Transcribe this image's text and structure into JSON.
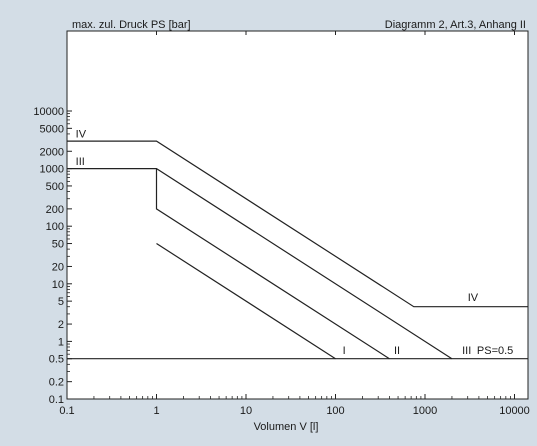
{
  "chart_data": {
    "type": "line",
    "title": "Diagramm 2, Art.3, Anhang II",
    "ylabel": "max. zul. Druck PS [bar]",
    "xlabel": "Volumen V [l]",
    "x_scale": "log",
    "y_scale": "log",
    "xlim": [
      0.1,
      20000
    ],
    "ylim": [
      0.1,
      20000
    ],
    "grid": false,
    "legend": "none",
    "x_ticks": [
      {
        "value": 0.1,
        "label": "0.1"
      },
      {
        "value": 1,
        "label": "1"
      },
      {
        "value": 10,
        "label": "10"
      },
      {
        "value": 100,
        "label": "100"
      },
      {
        "value": 1000,
        "label": "1000"
      },
      {
        "value": 10000,
        "label": "10000"
      }
    ],
    "y_ticks": [
      {
        "value": 0.1,
        "label": "0.1"
      },
      {
        "value": 0.2,
        "label": "0.2"
      },
      {
        "value": 0.5,
        "label": "0.5"
      },
      {
        "value": 1,
        "label": "1"
      },
      {
        "value": 2,
        "label": "2"
      },
      {
        "value": 5,
        "label": "5"
      },
      {
        "value": 10,
        "label": "10"
      },
      {
        "value": 20,
        "label": "20"
      },
      {
        "value": 50,
        "label": "50"
      },
      {
        "value": 100,
        "label": "100"
      },
      {
        "value": 200,
        "label": "200"
      },
      {
        "value": 500,
        "label": "500"
      },
      {
        "value": 1000,
        "label": "1000"
      },
      {
        "value": 2000,
        "label": "2000"
      },
      {
        "value": 5000,
        "label": "5000"
      },
      {
        "value": 10000,
        "label": "10000"
      }
    ],
    "series": [
      {
        "name": "IV",
        "points": [
          [
            0.1,
            3000
          ],
          [
            1,
            3000
          ],
          [
            750,
            4
          ],
          [
            14000,
            4
          ]
        ]
      },
      {
        "name": "III",
        "points": [
          [
            0.1,
            1000
          ],
          [
            1,
            1000
          ],
          [
            2000,
            0.5
          ]
        ]
      },
      {
        "name": "II",
        "points": [
          [
            1,
            1000
          ],
          [
            1,
            200
          ],
          [
            400,
            0.5
          ]
        ]
      },
      {
        "name": "I",
        "points": [
          [
            1,
            50
          ],
          [
            100,
            0.5
          ]
        ]
      },
      {
        "name": "PS=0.5",
        "points": [
          [
            0.1,
            0.5
          ],
          [
            14000,
            0.5
          ]
        ]
      }
    ],
    "annotations": [
      {
        "text": "IV",
        "x": 0.125,
        "y": 3500
      },
      {
        "text": "III",
        "x": 0.125,
        "y": 1150
      },
      {
        "text": "IV",
        "x": 3000,
        "y": 5
      },
      {
        "text": "I",
        "x": 120,
        "y": 0.6
      },
      {
        "text": "II",
        "x": 450,
        "y": 0.6
      },
      {
        "text": "III",
        "x": 2600,
        "y": 0.6
      },
      {
        "text": "PS=0.5",
        "x": 3800,
        "y": 0.6
      }
    ]
  },
  "colors": {
    "background": "#d3dde6",
    "plot_area": "#ffffff",
    "line": "#222222"
  }
}
